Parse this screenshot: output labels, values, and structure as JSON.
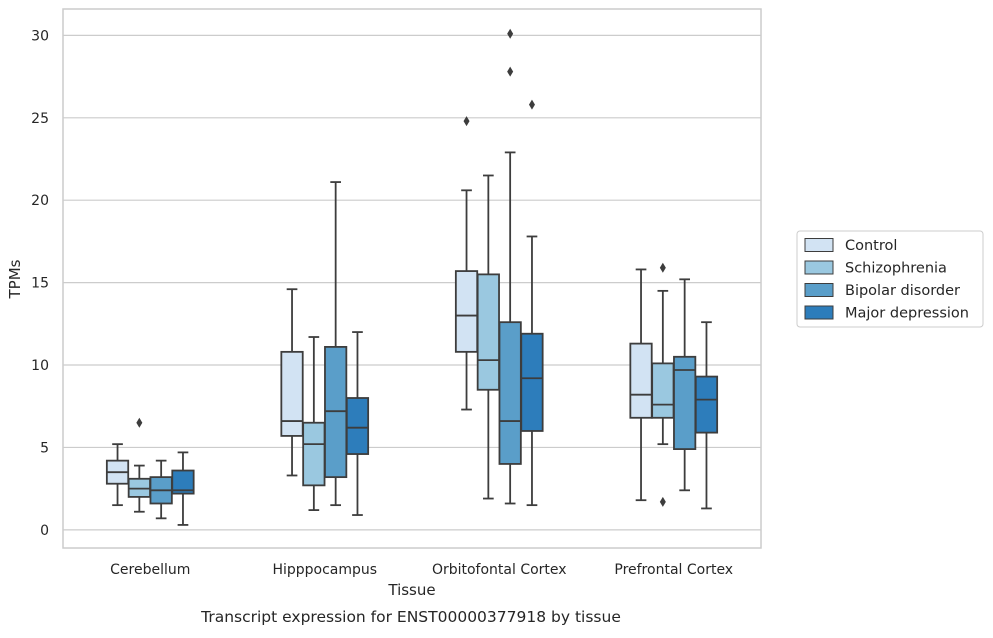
{
  "chart_data": {
    "type": "boxplot",
    "title": "",
    "caption": "Transcript expression for ENST00000377918 by tissue",
    "xlabel": "Tissue",
    "ylabel": "TPMs",
    "ylim": [
      -1.1,
      31.6
    ],
    "yticks": [
      0,
      5,
      10,
      15,
      20,
      25,
      30
    ],
    "grid": "horizontal",
    "legend_position": "right",
    "categories": [
      "Cerebellum",
      "Hipppocampus",
      "Orbitofontal Cortex",
      "Prefrontal Cortex"
    ],
    "series": [
      {
        "name": "Control",
        "color": "#d2e3f3",
        "boxes": [
          {
            "whislo": 1.5,
            "q1": 2.8,
            "med": 3.5,
            "q3": 4.2,
            "whishi": 5.2,
            "fliers": []
          },
          {
            "whislo": 3.3,
            "q1": 5.7,
            "med": 6.6,
            "q3": 10.8,
            "whishi": 14.6,
            "fliers": []
          },
          {
            "whislo": 7.3,
            "q1": 10.8,
            "med": 13.0,
            "q3": 15.7,
            "whishi": 20.6,
            "fliers": [
              24.8
            ]
          },
          {
            "whislo": 1.8,
            "q1": 6.8,
            "med": 8.2,
            "q3": 11.3,
            "whishi": 15.8,
            "fliers": []
          }
        ]
      },
      {
        "name": "Schizophrenia",
        "color": "#9ac8e0",
        "boxes": [
          {
            "whislo": 1.1,
            "q1": 2.0,
            "med": 2.5,
            "q3": 3.1,
            "whishi": 3.9,
            "fliers": [
              6.5
            ]
          },
          {
            "whislo": 1.2,
            "q1": 2.7,
            "med": 5.2,
            "q3": 6.5,
            "whishi": 11.7,
            "fliers": []
          },
          {
            "whislo": 1.9,
            "q1": 8.5,
            "med": 10.3,
            "q3": 15.5,
            "whishi": 21.5,
            "fliers": []
          },
          {
            "whislo": 5.2,
            "q1": 6.8,
            "med": 7.6,
            "q3": 10.1,
            "whishi": 14.5,
            "fliers": [
              1.7,
              15.9
            ]
          }
        ]
      },
      {
        "name": "Bipolar disorder",
        "color": "#5a9ec9",
        "boxes": [
          {
            "whislo": 0.7,
            "q1": 1.6,
            "med": 2.4,
            "q3": 3.2,
            "whishi": 4.2,
            "fliers": []
          },
          {
            "whislo": 1.5,
            "q1": 3.2,
            "med": 7.2,
            "q3": 11.1,
            "whishi": 21.1,
            "fliers": []
          },
          {
            "whislo": 1.6,
            "q1": 4.0,
            "med": 6.6,
            "q3": 12.6,
            "whishi": 22.9,
            "fliers": [
              27.8,
              30.1
            ]
          },
          {
            "whislo": 2.4,
            "q1": 4.9,
            "med": 9.7,
            "q3": 10.5,
            "whishi": 15.2,
            "fliers": []
          }
        ]
      },
      {
        "name": "Major depression",
        "color": "#2d7dbb",
        "boxes": [
          {
            "whislo": 0.3,
            "q1": 2.2,
            "med": 2.4,
            "q3": 3.6,
            "whishi": 4.7,
            "fliers": []
          },
          {
            "whislo": 0.9,
            "q1": 4.6,
            "med": 6.2,
            "q3": 8.0,
            "whishi": 12.0,
            "fliers": []
          },
          {
            "whislo": 1.5,
            "q1": 6.0,
            "med": 9.2,
            "q3": 11.9,
            "whishi": 17.8,
            "fliers": [
              25.8
            ]
          },
          {
            "whislo": 1.3,
            "q1": 5.9,
            "med": 7.9,
            "q3": 9.3,
            "whishi": 12.6,
            "fliers": []
          }
        ]
      }
    ]
  }
}
